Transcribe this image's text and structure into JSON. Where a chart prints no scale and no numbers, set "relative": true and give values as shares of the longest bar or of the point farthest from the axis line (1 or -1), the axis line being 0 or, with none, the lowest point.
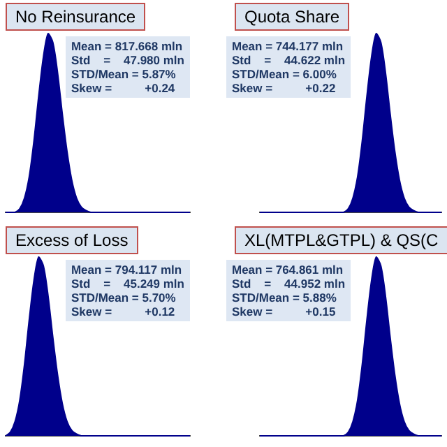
{
  "chart_data": [
    {
      "type": "area",
      "title": "No Reinsurance",
      "relative": true,
      "categories": [
        null,
        null,
        null,
        null,
        null,
        null,
        null,
        null,
        null,
        null,
        null,
        null,
        null,
        null,
        null,
        null,
        null,
        null,
        null,
        null,
        null,
        null,
        null,
        null,
        null,
        null,
        null,
        null,
        null,
        null,
        null,
        null,
        null,
        null,
        null,
        null,
        null,
        null,
        null,
        null
      ],
      "series": [
        {
          "color": "#00008b",
          "values": [
            0,
            0,
            0,
            0.02,
            0.08,
            0.2,
            0.4,
            0.65,
            0.87,
            1,
            0.95,
            0.78,
            0.55,
            0.34,
            0.18,
            0.08,
            0.03,
            0.01,
            0,
            0,
            0,
            0,
            0,
            0,
            0,
            0,
            0,
            0,
            0,
            0,
            0,
            0,
            0,
            0,
            0,
            0,
            0,
            0,
            0,
            0
          ]
        }
      ],
      "annotations": [
        "Mean = 817.668 mln",
        "Std    =    47.980 mln",
        "STD/Mean = 5.87%",
        "Skew =          +0.24"
      ]
    },
    {
      "type": "area",
      "title": "Quota Share",
      "relative": true,
      "categories": [
        null,
        null,
        null,
        null,
        null,
        null,
        null,
        null,
        null,
        null,
        null,
        null,
        null,
        null,
        null,
        null,
        null,
        null,
        null,
        null,
        null,
        null,
        null,
        null,
        null,
        null,
        null,
        null,
        null,
        null,
        null,
        null,
        null,
        null,
        null,
        null,
        null,
        null,
        null,
        null
      ],
      "series": [
        {
          "color": "#00008b",
          "values": [
            0,
            0,
            0,
            0,
            0,
            0,
            0,
            0,
            0,
            0,
            0,
            0,
            0,
            0,
            0,
            0,
            0,
            0,
            0,
            0.02,
            0.08,
            0.2,
            0.4,
            0.65,
            0.87,
            1,
            0.95,
            0.78,
            0.55,
            0.34,
            0.18,
            0.08,
            0.03,
            0.01,
            0,
            0,
            0,
            0,
            0,
            0
          ]
        }
      ],
      "annotations": [
        "Mean = 744.177 mln",
        "Std    =    44.622 mln",
        "STD/Mean = 6.00%",
        "Skew =          +0.22"
      ]
    },
    {
      "type": "area",
      "title": "Excess of Loss",
      "relative": true,
      "categories": [
        null,
        null,
        null,
        null,
        null,
        null,
        null,
        null,
        null,
        null,
        null,
        null,
        null,
        null,
        null,
        null,
        null,
        null,
        null,
        null,
        null,
        null,
        null,
        null,
        null,
        null,
        null,
        null,
        null,
        null,
        null,
        null,
        null,
        null,
        null,
        null,
        null,
        null,
        null,
        null
      ],
      "series": [
        {
          "color": "#00008b",
          "values": [
            0,
            0.02,
            0.08,
            0.2,
            0.4,
            0.65,
            0.87,
            1,
            0.95,
            0.78,
            0.55,
            0.34,
            0.18,
            0.08,
            0.03,
            0.01,
            0,
            0,
            0,
            0,
            0,
            0,
            0,
            0,
            0,
            0,
            0,
            0,
            0,
            0,
            0,
            0,
            0,
            0,
            0,
            0,
            0,
            0,
            0,
            0
          ]
        }
      ],
      "annotations": [
        "Mean = 794.117 mln",
        "Std    =    45.249 mln",
        "STD/Mean = 5.70%",
        "Skew =          +0.12"
      ]
    },
    {
      "type": "area",
      "title": "XL(MTPL&GTPL) & QS(C",
      "relative": true,
      "categories": [
        null,
        null,
        null,
        null,
        null,
        null,
        null,
        null,
        null,
        null,
        null,
        null,
        null,
        null,
        null,
        null,
        null,
        null,
        null,
        null,
        null,
        null,
        null,
        null,
        null,
        null,
        null,
        null,
        null,
        null,
        null,
        null,
        null,
        null,
        null,
        null,
        null,
        null,
        null,
        null
      ],
      "series": [
        {
          "color": "#00008b",
          "values": [
            0,
            0,
            0,
            0,
            0,
            0,
            0,
            0,
            0,
            0,
            0,
            0,
            0,
            0,
            0,
            0,
            0,
            0,
            0,
            0.02,
            0.08,
            0.2,
            0.4,
            0.65,
            0.87,
            1,
            0.95,
            0.78,
            0.55,
            0.34,
            0.18,
            0.08,
            0.03,
            0.01,
            0,
            0,
            0,
            0,
            0,
            0
          ]
        }
      ],
      "annotations": [
        "Mean = 764.861 mln",
        "Std    =    44.952 mln",
        "STD/Mean = 5.88%",
        "Skew =          +0.15"
      ]
    }
  ]
}
